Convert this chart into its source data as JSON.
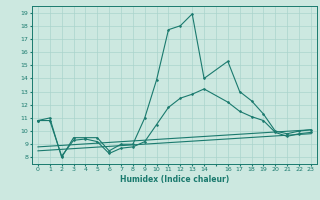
{
  "title": "",
  "xlabel": "Humidex (Indice chaleur)",
  "ylabel": "",
  "bg_color": "#cce8e0",
  "line_color": "#1a7a6e",
  "grid_color": "#aad4cc",
  "ylim": [
    7.5,
    19.5
  ],
  "xlim": [
    -0.5,
    23.5
  ],
  "yticks": [
    8,
    9,
    10,
    11,
    12,
    13,
    14,
    15,
    16,
    17,
    18,
    19
  ],
  "xtick_labels": [
    "0",
    "1",
    "2",
    "3",
    "4",
    "5",
    "6",
    "7",
    "8",
    "9",
    "10",
    "11",
    "12",
    "13",
    "14",
    "",
    "16",
    "17",
    "18",
    "19",
    "20",
    "21",
    "22",
    "23"
  ],
  "xtick_positions": [
    0,
    1,
    2,
    3,
    4,
    5,
    6,
    7,
    8,
    9,
    10,
    11,
    12,
    13,
    14,
    15,
    16,
    17,
    18,
    19,
    20,
    21,
    22,
    23
  ],
  "series": [
    {
      "x": [
        0,
        1,
        2,
        3,
        4,
        5,
        6,
        7,
        8,
        9,
        10,
        11,
        12,
        13,
        14,
        16,
        17,
        18,
        19,
        20,
        21,
        22,
        23
      ],
      "y": [
        10.8,
        11.0,
        8.0,
        9.5,
        9.5,
        9.5,
        8.5,
        9.0,
        9.0,
        11.0,
        13.9,
        17.7,
        18.0,
        18.9,
        14.0,
        15.3,
        13.0,
        12.3,
        11.3,
        10.0,
        9.8,
        10.0,
        10.1
      ],
      "marker": true
    },
    {
      "x": [
        0,
        1,
        2,
        3,
        4,
        5,
        6,
        7,
        8,
        9,
        10,
        11,
        12,
        13,
        14,
        16,
        17,
        18,
        19,
        20,
        21,
        22,
        23
      ],
      "y": [
        10.8,
        10.8,
        8.1,
        9.3,
        9.4,
        9.2,
        8.3,
        8.7,
        8.8,
        9.2,
        10.5,
        11.8,
        12.5,
        12.8,
        13.2,
        12.2,
        11.5,
        11.1,
        10.8,
        9.9,
        9.6,
        9.8,
        9.9
      ],
      "marker": true
    },
    {
      "x": [
        0,
        23
      ],
      "y": [
        8.8,
        10.1
      ],
      "marker": false
    },
    {
      "x": [
        0,
        23
      ],
      "y": [
        8.5,
        9.8
      ],
      "marker": false
    }
  ]
}
